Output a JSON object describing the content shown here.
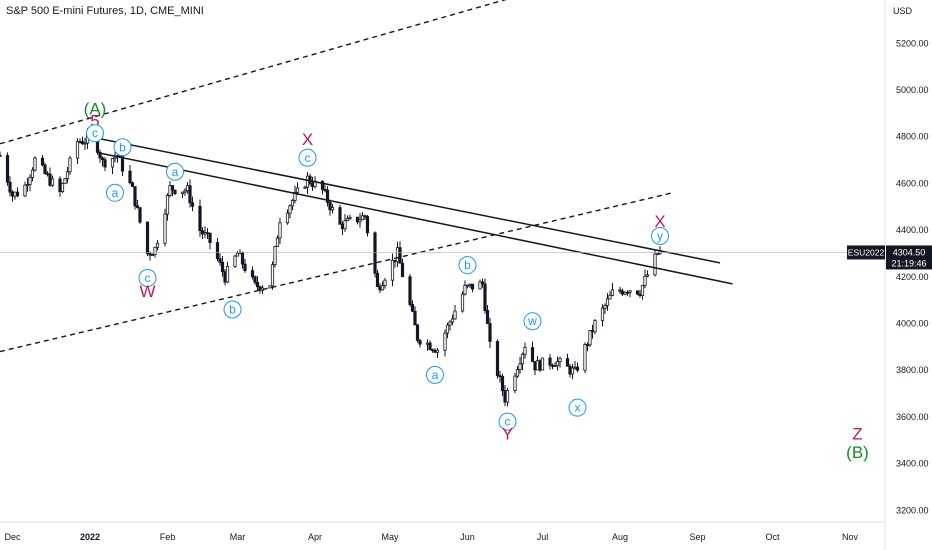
{
  "header": {
    "title": "S&P 500 E-mini Futures, 1D, CME_MINI"
  },
  "colors": {
    "candle": "#131722",
    "wave_minor": "#2196f3",
    "wave_red": "#c2185b",
    "wave_green": "#1b8a2a",
    "price_tag": "#131722"
  },
  "chart_data": {
    "type": "candlestick",
    "symbol": "ESU2022",
    "price_axis": {
      "currency": "USD",
      "ticks": [
        "5200.00",
        "5000.00",
        "4800.00",
        "4600.00",
        "4400.00",
        "4200.00",
        "4000.00",
        "3800.00",
        "3600.00",
        "3400.00",
        "3200.00"
      ],
      "ylim": [
        3150,
        5300
      ]
    },
    "time_axis": {
      "ticks": [
        {
          "label": "Dec",
          "date": "2021-12-01"
        },
        {
          "label": "2022",
          "date": "2022-01-01",
          "bold": true
        },
        {
          "label": "Feb",
          "date": "2022-02-01"
        },
        {
          "label": "Mar",
          "date": "2022-03-01"
        },
        {
          "label": "Apr",
          "date": "2022-04-01"
        },
        {
          "label": "May",
          "date": "2022-05-01"
        },
        {
          "label": "Jun",
          "date": "2022-06-01"
        },
        {
          "label": "Jul",
          "date": "2022-07-01"
        },
        {
          "label": "Aug",
          "date": "2022-08-01"
        },
        {
          "label": "Sep",
          "date": "2022-09-01"
        },
        {
          "label": "Oct",
          "date": "2022-10-01"
        },
        {
          "label": "Nov",
          "date": "2022-11-01"
        }
      ],
      "xlim": [
        "2021-11-26",
        "2022-11-15"
      ]
    },
    "last_price": {
      "value": "4304.50",
      "countdown": "21:19:46"
    },
    "price_path": [
      [
        "2021-11-26",
        4720
      ],
      [
        "2021-12-01",
        4550
      ],
      [
        "2021-12-03",
        4560
      ],
      [
        "2021-12-06",
        4590
      ],
      [
        "2021-12-10",
        4700
      ],
      [
        "2021-12-14",
        4640
      ],
      [
        "2021-12-20",
        4560
      ],
      [
        "2021-12-27",
        4780
      ],
      [
        "2022-01-03",
        4790
      ],
      [
        "2022-01-06",
        4690
      ],
      [
        "2022-01-12",
        4720
      ],
      [
        "2022-01-18",
        4570
      ],
      [
        "2022-01-24",
        4300
      ],
      [
        "2022-01-27",
        4320
      ],
      [
        "2022-02-02",
        4580
      ],
      [
        "2022-02-09",
        4570
      ],
      [
        "2022-02-14",
        4400
      ],
      [
        "2022-02-18",
        4350
      ],
      [
        "2022-02-24",
        4200
      ],
      [
        "2022-03-01",
        4300
      ],
      [
        "2022-03-08",
        4160
      ],
      [
        "2022-03-14",
        4170
      ],
      [
        "2022-03-18",
        4450
      ],
      [
        "2022-03-29",
        4620
      ],
      [
        "2022-04-04",
        4570
      ],
      [
        "2022-04-11",
        4420
      ],
      [
        "2022-04-21",
        4460
      ],
      [
        "2022-04-26",
        4150
      ],
      [
        "2022-05-04",
        4300
      ],
      [
        "2022-05-12",
        3940
      ],
      [
        "2022-05-20",
        3890
      ],
      [
        "2022-05-31",
        4150
      ],
      [
        "2022-06-07",
        4170
      ],
      [
        "2022-06-10",
        3900
      ],
      [
        "2022-06-16",
        3680
      ],
      [
        "2022-06-24",
        3910
      ],
      [
        "2022-06-28",
        3820
      ],
      [
        "2022-07-06",
        3840
      ],
      [
        "2022-07-14",
        3790
      ],
      [
        "2022-07-22",
        4000
      ],
      [
        "2022-07-29",
        4130
      ],
      [
        "2022-08-04",
        4150
      ],
      [
        "2022-08-09",
        4140
      ],
      [
        "2022-08-16",
        4300
      ],
      [
        "2022-08-17",
        4304.5
      ]
    ],
    "trendlines": [
      {
        "style": "solid",
        "from": [
          "2022-01-01",
          4800
        ],
        "to": [
          "2022-09-10",
          4260
        ]
      },
      {
        "style": "solid",
        "from": [
          "2022-01-05",
          4730
        ],
        "to": [
          "2022-09-15",
          4170
        ]
      },
      {
        "style": "dashed",
        "from": [
          "2021-11-26",
          4770
        ],
        "to": [
          "2022-07-10",
          5460
        ]
      },
      {
        "style": "dashed",
        "from": [
          "2021-11-26",
          3880
        ],
        "to": [
          "2022-08-22",
          4560
        ]
      }
    ],
    "wave_labels": [
      {
        "text": "(A)",
        "date": "2022-01-03",
        "price": 4920,
        "color": "green"
      },
      {
        "text": "5",
        "date": "2022-01-03",
        "price": 4870,
        "color": "red"
      },
      {
        "text": "c",
        "date": "2022-01-03",
        "price": 4815,
        "circled": true
      },
      {
        "text": "b",
        "date": "2022-01-14",
        "price": 4755,
        "circled": true
      },
      {
        "text": "a",
        "date": "2022-01-11",
        "price": 4560,
        "circled": true
      },
      {
        "text": "a",
        "date": "2022-02-04",
        "price": 4650,
        "circled": true
      },
      {
        "text": "c",
        "date": "2022-01-24",
        "price": 4195,
        "circled": true
      },
      {
        "text": "W",
        "date": "2022-01-24",
        "price": 4140,
        "color": "red"
      },
      {
        "text": "b",
        "date": "2022-02-27",
        "price": 4060,
        "circled": true
      },
      {
        "text": "X",
        "date": "2022-03-29",
        "price": 4790,
        "color": "red"
      },
      {
        "text": "c",
        "date": "2022-03-29",
        "price": 4710,
        "circled": true
      },
      {
        "text": "b",
        "date": "2022-06-01",
        "price": 4250,
        "circled": true
      },
      {
        "text": "a",
        "date": "2022-05-19",
        "price": 3780,
        "circled": true
      },
      {
        "text": "w",
        "date": "2022-06-27",
        "price": 4010,
        "circled": true
      },
      {
        "text": "c",
        "date": "2022-06-17",
        "price": 3580,
        "circled": true
      },
      {
        "text": "Y",
        "date": "2022-06-17",
        "price": 3530,
        "color": "red"
      },
      {
        "text": "x",
        "date": "2022-07-15",
        "price": 3640,
        "circled": true
      },
      {
        "text": "X",
        "date": "2022-08-17",
        "price": 4440,
        "color": "red"
      },
      {
        "text": "y",
        "date": "2022-08-17",
        "price": 4375,
        "circled": true
      },
      {
        "text": "Z",
        "date": "2022-11-04",
        "price": 3530,
        "color": "red"
      },
      {
        "text": "(B)",
        "date": "2022-11-04",
        "price": 3450,
        "color": "green"
      }
    ]
  }
}
